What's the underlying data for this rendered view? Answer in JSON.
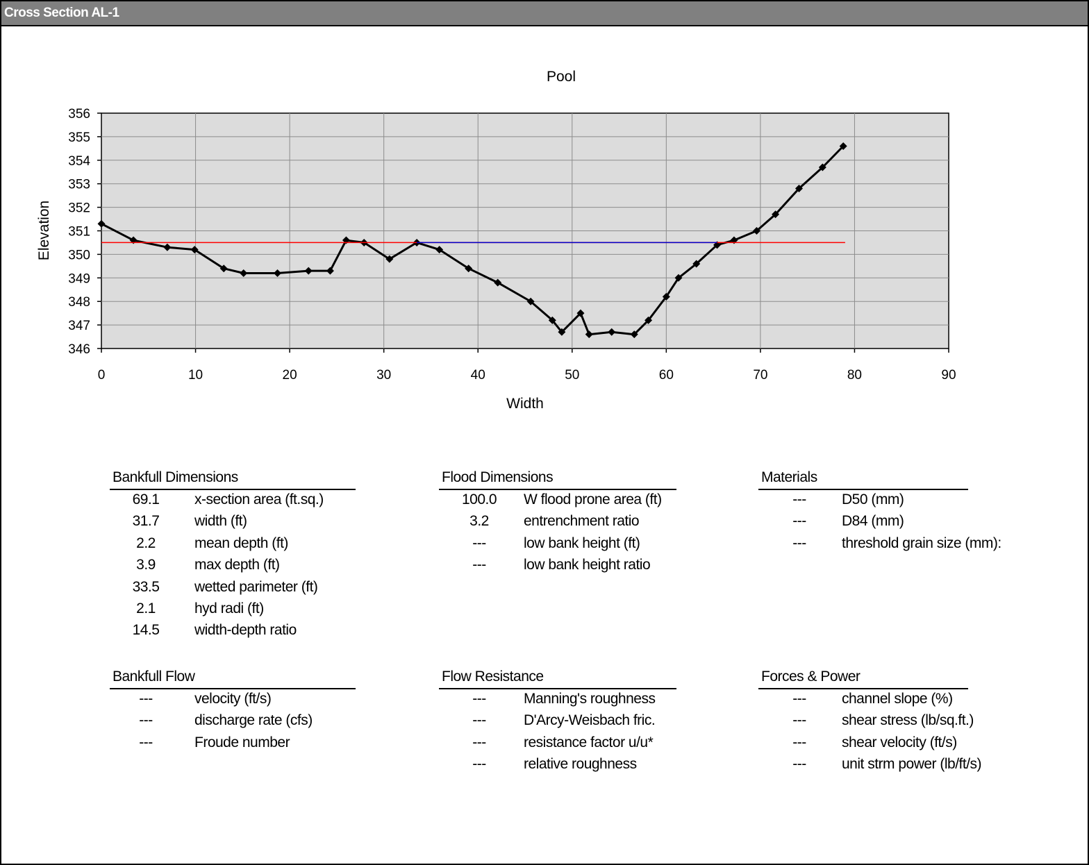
{
  "window": {
    "title": "Cross Section  AL-1"
  },
  "chart_data": {
    "type": "line",
    "title": "Pool",
    "xlabel": "Width",
    "ylabel": "Elevation",
    "xlim": [
      0,
      90
    ],
    "ylim": [
      346,
      356
    ],
    "xticks": [
      0,
      10,
      20,
      30,
      40,
      50,
      60,
      70,
      80,
      90
    ],
    "yticks": [
      346,
      347,
      348,
      349,
      350,
      351,
      352,
      353,
      354,
      355,
      356
    ],
    "grid": true,
    "legend": "none",
    "series": [
      {
        "color": "#000000",
        "markers": true,
        "x": [
          0,
          3.4,
          7.0,
          9.9,
          13.0,
          15.1,
          18.7,
          22.0,
          24.3,
          26.0,
          27.9,
          30.6,
          33.5,
          35.9,
          39.0,
          42.1,
          45.6,
          47.9,
          48.9,
          50.9,
          51.8,
          54.2,
          56.6,
          58.1,
          60.0,
          61.3,
          63.2,
          65.4,
          67.2,
          69.6,
          71.6,
          74.1,
          76.6,
          78.8
        ],
        "y": [
          351.3,
          350.6,
          350.3,
          350.2,
          349.4,
          349.2,
          349.2,
          349.3,
          349.3,
          350.6,
          350.5,
          349.8,
          350.5,
          350.2,
          349.4,
          348.8,
          348.0,
          347.2,
          346.7,
          347.5,
          346.6,
          346.7,
          346.6,
          347.2,
          348.2,
          349.0,
          349.6,
          350.4,
          350.6,
          351.0,
          351.7,
          352.8,
          353.7,
          354.6
        ]
      },
      {
        "color": "#ff0000",
        "markers": false,
        "x": [
          0,
          79
        ],
        "y": [
          350.5,
          350.5
        ]
      },
      {
        "color": "#0000cc",
        "markers": false,
        "x": [
          33.5,
          65.4
        ],
        "y": [
          350.5,
          350.5
        ]
      }
    ]
  },
  "tables": {
    "bankfull_dimensions": {
      "heading": "Bankfull Dimensions",
      "rows": [
        {
          "value": "69.1",
          "label": "x-section area (ft.sq.)"
        },
        {
          "value": "31.7",
          "label": "width (ft)"
        },
        {
          "value": "2.2",
          "label": "mean depth (ft)"
        },
        {
          "value": "3.9",
          "label": "max depth (ft)"
        },
        {
          "value": "33.5",
          "label": "wetted parimeter (ft)"
        },
        {
          "value": "2.1",
          "label": "hyd radi (ft)"
        },
        {
          "value": "14.5",
          "label": "width-depth ratio"
        }
      ]
    },
    "flood_dimensions": {
      "heading": "Flood Dimensions",
      "rows": [
        {
          "value": "100.0",
          "label": "W flood prone area (ft)"
        },
        {
          "value": "3.2",
          "label": "entrenchment ratio"
        },
        {
          "value": "---",
          "label": "low bank height (ft)"
        },
        {
          "value": "---",
          "label": "low bank height ratio"
        }
      ]
    },
    "materials": {
      "heading": "Materials",
      "rows": [
        {
          "value": "---",
          "label": "D50  (mm)"
        },
        {
          "value": "---",
          "label": "D84  (mm)"
        },
        {
          "value": "---",
          "label": "threshold grain size (mm):"
        }
      ]
    },
    "bankfull_flow": {
      "heading": "Bankfull Flow",
      "rows": [
        {
          "value": "---",
          "label": "velocity (ft/s)"
        },
        {
          "value": "---",
          "label": "discharge rate (cfs)"
        },
        {
          "value": "---",
          "label": "Froude number"
        }
      ]
    },
    "flow_resistance": {
      "heading": "Flow Resistance",
      "rows": [
        {
          "value": "---",
          "label": "Manning's roughness"
        },
        {
          "value": "---",
          "label": "D'Arcy-Weisbach fric."
        },
        {
          "value": "---",
          "label": "resistance factor u/u*"
        },
        {
          "value": "---",
          "label": "relative roughness"
        }
      ]
    },
    "forces_power": {
      "heading": "Forces & Power",
      "rows": [
        {
          "value": "---",
          "label": "channel slope (%)"
        },
        {
          "value": "---",
          "label": "shear stress (lb/sq.ft.)"
        },
        {
          "value": "---",
          "label": "shear velocity (ft/s)"
        },
        {
          "value": "---",
          "label": "unit strm power (lb/ft/s)"
        }
      ]
    }
  }
}
